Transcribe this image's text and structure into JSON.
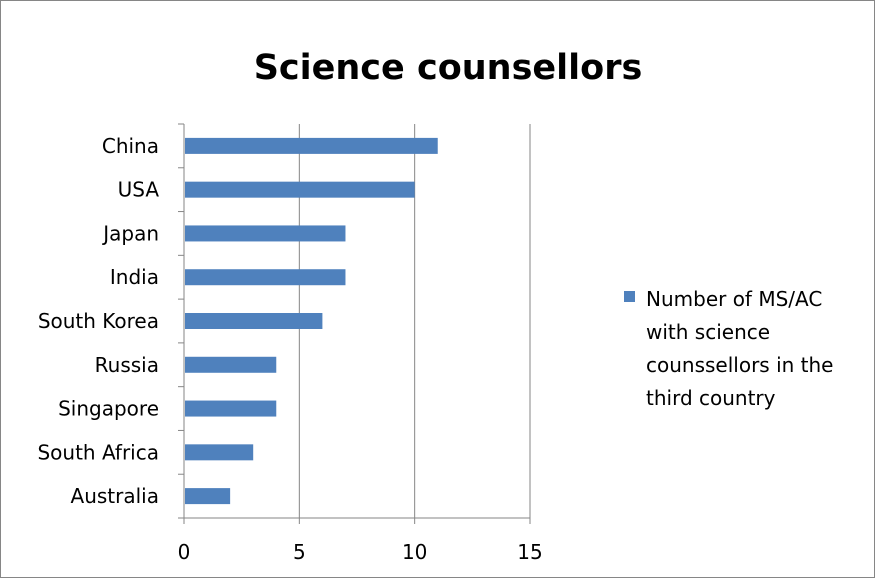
{
  "chart_data": {
    "type": "bar",
    "orientation": "horizontal",
    "title": "Science counsellors",
    "categories": [
      "China",
      "USA",
      "Japan ",
      "India",
      "South Korea",
      "Russia",
      "Singapore",
      "South Africa",
      "Australia"
    ],
    "series": [
      {
        "name": "Number of MS/AC with science counssellors in the third country",
        "values": [
          11,
          10,
          7,
          7,
          6,
          4,
          4,
          3,
          2
        ]
      }
    ],
    "xlim": [
      0,
      15
    ],
    "xticks": [
      "0",
      "5",
      "10",
      "15"
    ],
    "grid": "vertical",
    "legend": "right",
    "legend_lines": [
      "Number of MS/AC",
      "with science",
      "counssellors in the",
      "third country"
    ],
    "colors": {
      "bar": "#4F81BD",
      "grid": "#868686",
      "axis": "#868686",
      "text": "#000000"
    }
  }
}
